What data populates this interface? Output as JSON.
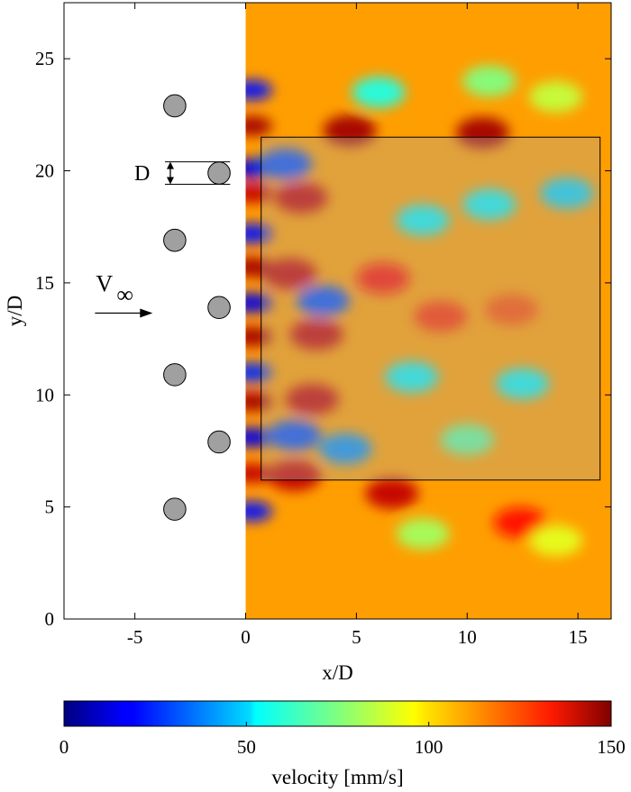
{
  "chart_data": {
    "type": "heatmap",
    "title": "",
    "xlabel": "x/D",
    "ylabel": "y/D",
    "xlim": [
      -8.2,
      16.5
    ],
    "ylim": [
      0,
      27.5
    ],
    "x_ticks": [
      -5,
      0,
      5,
      10,
      15
    ],
    "x_tick_labels": [
      "-5",
      "0",
      "5",
      "10",
      "15"
    ],
    "y_ticks": [
      0,
      5,
      10,
      15,
      20,
      25
    ],
    "y_tick_labels": [
      "0",
      "5",
      "10",
      "15",
      "20",
      "25"
    ],
    "grid": false,
    "field": {
      "name": "velocity",
      "x_range": [
        0,
        16.5
      ],
      "y_range": [
        0,
        27.5
      ],
      "background_value": 108,
      "features": [
        {
          "x": 0.3,
          "y": 23.6,
          "value": 20
        },
        {
          "x": 0.3,
          "y": 22.0,
          "value": 145
        },
        {
          "x": 0.3,
          "y": 20.1,
          "value": 15
        },
        {
          "x": 0.3,
          "y": 19.0,
          "value": 140
        },
        {
          "x": 0.3,
          "y": 17.2,
          "value": 20
        },
        {
          "x": 0.3,
          "y": 15.7,
          "value": 145
        },
        {
          "x": 0.3,
          "y": 14.1,
          "value": 15
        },
        {
          "x": 0.3,
          "y": 12.6,
          "value": 145
        },
        {
          "x": 0.3,
          "y": 11.0,
          "value": 25
        },
        {
          "x": 0.3,
          "y": 9.7,
          "value": 145
        },
        {
          "x": 0.3,
          "y": 8.1,
          "value": 15
        },
        {
          "x": 0.3,
          "y": 6.5,
          "value": 140
        },
        {
          "x": 0.3,
          "y": 4.8,
          "value": 20
        },
        {
          "x": 1.8,
          "y": 20.3,
          "value": 30
        },
        {
          "x": 2.5,
          "y": 18.8,
          "value": 140
        },
        {
          "x": 2.0,
          "y": 15.4,
          "value": 140
        },
        {
          "x": 3.5,
          "y": 14.2,
          "value": 30
        },
        {
          "x": 3.2,
          "y": 12.7,
          "value": 140
        },
        {
          "x": 3.0,
          "y": 9.8,
          "value": 140
        },
        {
          "x": 2.2,
          "y": 8.2,
          "value": 30
        },
        {
          "x": 4.5,
          "y": 7.6,
          "value": 40
        },
        {
          "x": 2.2,
          "y": 6.4,
          "value": 140
        },
        {
          "x": 4.7,
          "y": 21.8,
          "value": 145
        },
        {
          "x": 10.7,
          "y": 21.7,
          "value": 145
        },
        {
          "x": 6.6,
          "y": 5.6,
          "value": 140
        },
        {
          "x": 12.4,
          "y": 4.3,
          "value": 130
        },
        {
          "x": 6.2,
          "y": 15.2,
          "value": 130
        },
        {
          "x": 8.8,
          "y": 13.5,
          "value": 125
        },
        {
          "x": 12.0,
          "y": 13.8,
          "value": 120
        },
        {
          "x": 8.0,
          "y": 17.8,
          "value": 55
        },
        {
          "x": 11.0,
          "y": 18.5,
          "value": 55
        },
        {
          "x": 14.5,
          "y": 19.0,
          "value": 50
        },
        {
          "x": 7.5,
          "y": 10.8,
          "value": 55
        },
        {
          "x": 12.5,
          "y": 10.5,
          "value": 55
        },
        {
          "x": 10.0,
          "y": 8.0,
          "value": 70
        },
        {
          "x": 6.0,
          "y": 23.5,
          "value": 60
        },
        {
          "x": 11.0,
          "y": 24.0,
          "value": 75
        },
        {
          "x": 14.0,
          "y": 23.3,
          "value": 85
        },
        {
          "x": 8.0,
          "y": 3.8,
          "value": 80
        },
        {
          "x": 14.0,
          "y": 3.5,
          "value": 90
        }
      ]
    },
    "cylinders": [
      {
        "x": -3.2,
        "y": 22.9
      },
      {
        "x": -1.2,
        "y": 19.9
      },
      {
        "x": -3.2,
        "y": 16.9
      },
      {
        "x": -1.2,
        "y": 13.9
      },
      {
        "x": -3.2,
        "y": 10.9
      },
      {
        "x": -1.2,
        "y": 7.9
      },
      {
        "x": -3.2,
        "y": 4.9
      }
    ],
    "cylinder_diameter": 1.0,
    "cylinder_color": "#a0a0a0",
    "highlight_box": {
      "x0": 0.7,
      "x1": 16.0,
      "y0": 6.2,
      "y1": 21.5
    },
    "annotations": {
      "diameter_label": "D",
      "freestream_label": "V",
      "freestream_subscript": "∞"
    },
    "colorbar": {
      "label": "velocity [mm/s]",
      "min": 0,
      "max": 150,
      "ticks": [
        0,
        50,
        100,
        150
      ],
      "tick_labels": [
        "0",
        "50",
        "100",
        "150"
      ],
      "colormap": "jet"
    }
  }
}
